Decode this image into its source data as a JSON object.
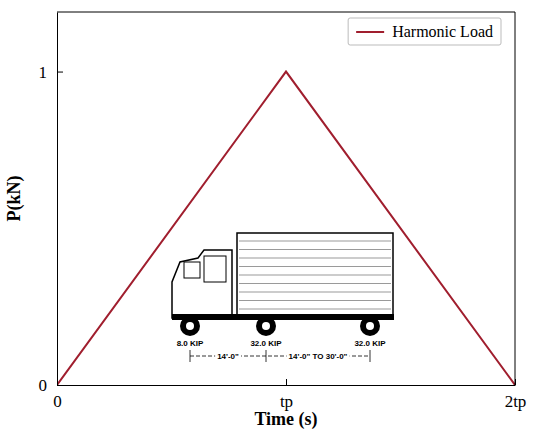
{
  "chart_data": {
    "type": "line",
    "xlabel": "Time (s)",
    "ylabel": "P(kN)",
    "x": [
      0,
      1,
      2
    ],
    "series": [
      {
        "name": "Harmonic Load",
        "color": "#a01e2e",
        "values": [
          0,
          1,
          0
        ]
      }
    ],
    "xlim": [
      0,
      2
    ],
    "xticks": [
      0,
      {
        "value": 1,
        "label": "tp"
      },
      {
        "value": 2,
        "label": "2tp"
      }
    ],
    "ylim": [
      0,
      1.19
    ],
    "yticks": [
      0,
      1
    ],
    "legend": "upper right",
    "annotations": [
      "8.0 KIP",
      "32.0 KIP",
      "32.0 KIP",
      "14'-0\"",
      "14'-0\" TO 30'-0\""
    ]
  }
}
